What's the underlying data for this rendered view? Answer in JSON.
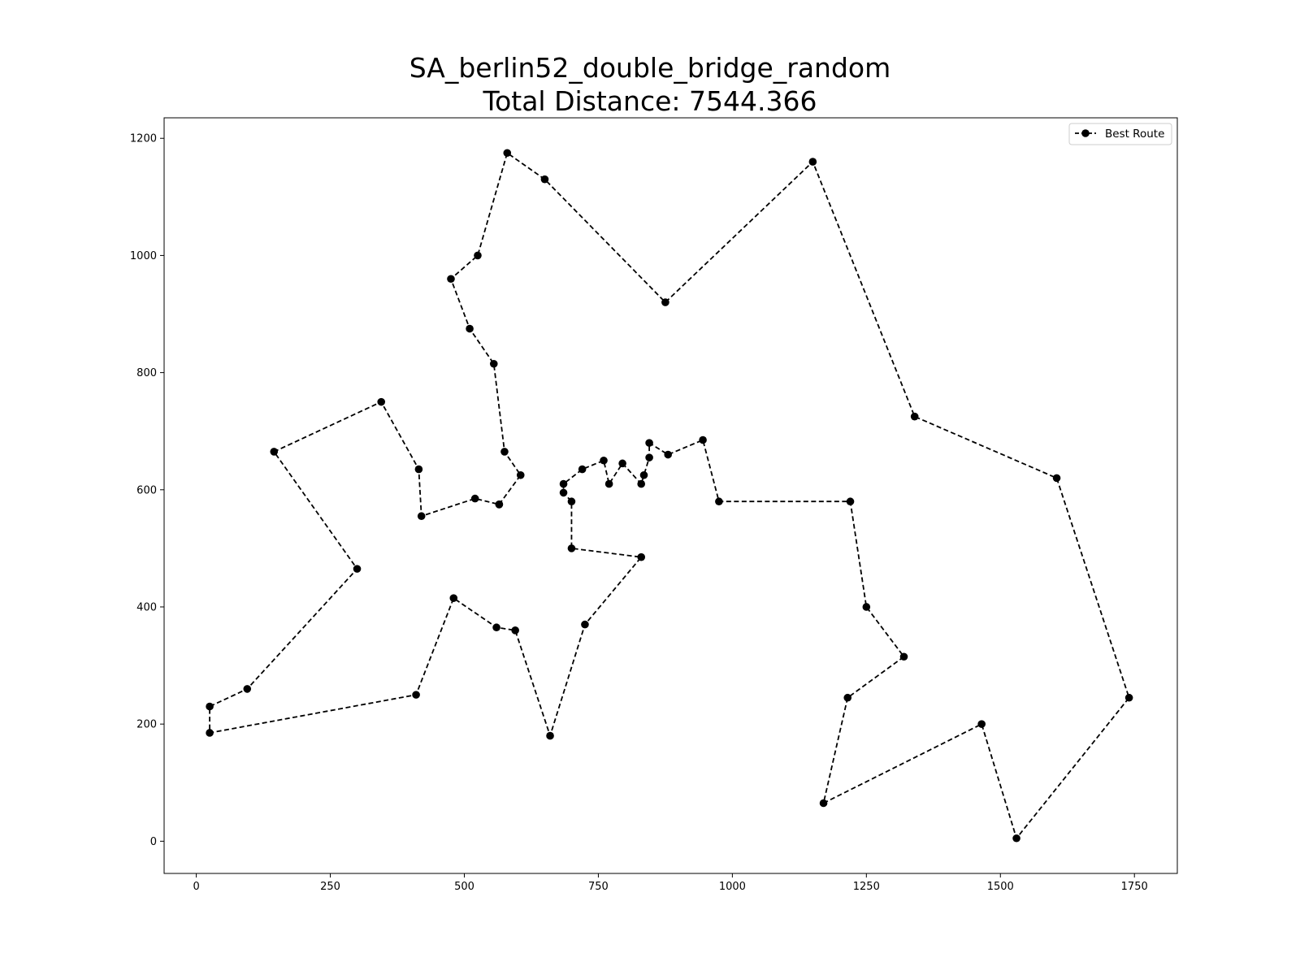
{
  "chart_data": {
    "type": "line",
    "title_line1": "SA_berlin52_double_bridge_random",
    "title_line2": "Total Distance: 7544.366",
    "xlabel": "",
    "ylabel": "",
    "xlim": [
      -60,
      1830
    ],
    "ylim": [
      -55,
      1235
    ],
    "x_ticks": [
      0,
      250,
      500,
      750,
      1000,
      1250,
      1500,
      1750
    ],
    "y_ticks": [
      0,
      200,
      400,
      600,
      800,
      1000,
      1200
    ],
    "grid": false,
    "legend_position": "top-right",
    "colors": {
      "line": "#000000",
      "marker": "#000000"
    },
    "series": [
      {
        "name": "Best Route",
        "style": "dashed-line-with-circle-markers",
        "points": [
          [
            565,
            575
          ],
          [
            605,
            625
          ],
          [
            575,
            665
          ],
          [
            555,
            815
          ],
          [
            510,
            875
          ],
          [
            475,
            960
          ],
          [
            525,
            1000
          ],
          [
            580,
            1175
          ],
          [
            650,
            1130
          ],
          [
            875,
            920
          ],
          [
            1150,
            1160
          ],
          [
            1340,
            725
          ],
          [
            1605,
            620
          ],
          [
            1740,
            245
          ],
          [
            1530,
            5
          ],
          [
            1465,
            200
          ],
          [
            1170,
            65
          ],
          [
            1215,
            245
          ],
          [
            1320,
            315
          ],
          [
            1250,
            400
          ],
          [
            1220,
            580
          ],
          [
            975,
            580
          ],
          [
            945,
            685
          ],
          [
            880,
            660
          ],
          [
            845,
            680
          ],
          [
            845,
            655
          ],
          [
            835,
            625
          ],
          [
            830,
            610
          ],
          [
            795,
            645
          ],
          [
            770,
            610
          ],
          [
            760,
            650
          ],
          [
            720,
            635
          ],
          [
            685,
            610
          ],
          [
            685,
            595
          ],
          [
            700,
            580
          ],
          [
            700,
            500
          ],
          [
            830,
            485
          ],
          [
            725,
            370
          ],
          [
            660,
            180
          ],
          [
            595,
            360
          ],
          [
            560,
            365
          ],
          [
            480,
            415
          ],
          [
            410,
            250
          ],
          [
            25,
            185
          ],
          [
            25,
            230
          ],
          [
            95,
            260
          ],
          [
            300,
            465
          ],
          [
            145,
            665
          ],
          [
            345,
            750
          ],
          [
            415,
            635
          ],
          [
            420,
            555
          ],
          [
            520,
            585
          ],
          [
            565,
            575
          ]
        ]
      }
    ]
  }
}
